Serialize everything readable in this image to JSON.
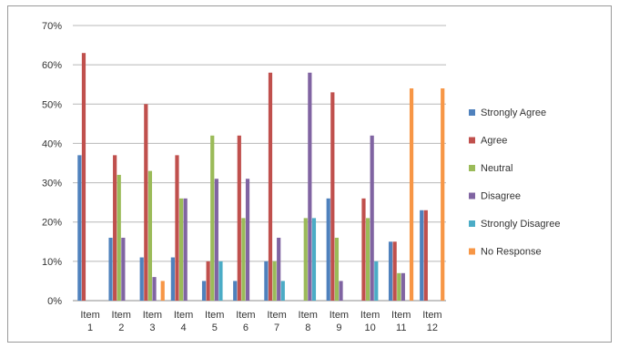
{
  "chart_data": {
    "type": "bar",
    "title": "",
    "xlabel": "",
    "ylabel": "",
    "ylim": [
      0,
      70
    ],
    "y_ticks": [
      "0%",
      "10%",
      "20%",
      "30%",
      "40%",
      "50%",
      "60%",
      "70%"
    ],
    "y_tick_values": [
      0,
      10,
      20,
      30,
      40,
      50,
      60,
      70
    ],
    "grid": "horizontal",
    "legend_position": "right",
    "categories": [
      [
        "Item",
        "1"
      ],
      [
        "Item",
        "2"
      ],
      [
        "Item",
        "3"
      ],
      [
        "Item",
        "4"
      ],
      [
        "Item",
        "5"
      ],
      [
        "Item",
        "6"
      ],
      [
        "Item",
        "7"
      ],
      [
        "Item",
        "8"
      ],
      [
        "Item",
        "9"
      ],
      [
        "Item",
        "10"
      ],
      [
        "Item",
        "11"
      ],
      [
        "Item",
        "12"
      ]
    ],
    "series": [
      {
        "name": "Strongly Agree",
        "color": "#4f81bd",
        "values": [
          37,
          16,
          11,
          11,
          5,
          5,
          10,
          0,
          26,
          0,
          15,
          23
        ]
      },
      {
        "name": "Agree",
        "color": "#c0504d",
        "values": [
          63,
          37,
          50,
          37,
          10,
          42,
          58,
          0,
          53,
          26,
          15,
          23
        ]
      },
      {
        "name": "Neutral",
        "color": "#9bbb59",
        "values": [
          0,
          32,
          33,
          26,
          42,
          21,
          10,
          21,
          16,
          21,
          7,
          0
        ]
      },
      {
        "name": "Disagree",
        "color": "#8064a2",
        "values": [
          0,
          16,
          6,
          26,
          31,
          31,
          16,
          58,
          5,
          42,
          7,
          0
        ]
      },
      {
        "name": "Strongly Disagree",
        "color": "#4bacc6",
        "values": [
          0,
          0,
          0,
          0,
          10,
          0,
          5,
          21,
          0,
          10,
          0,
          0
        ]
      },
      {
        "name": "No Response",
        "color": "#f79646",
        "values": [
          0,
          0,
          5,
          0,
          0,
          0,
          0,
          0,
          0,
          0,
          54,
          54
        ]
      }
    ]
  }
}
